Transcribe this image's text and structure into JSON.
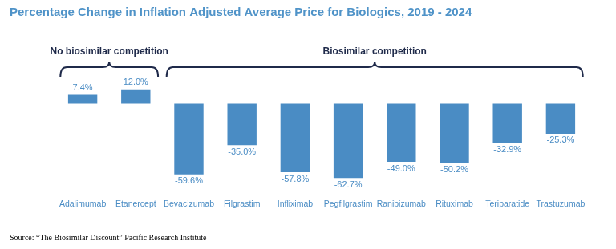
{
  "chart_data": {
    "type": "bar",
    "title": "Percentage Change in Inflation Adjusted Average Price for Biologics, 2019 - 2024",
    "categories": [
      "Adalimumab",
      "Etanercept",
      "Bevacizumab",
      "Filgrastim",
      "Infliximab",
      "Pegfilgrastim",
      "Ranibizumab",
      "Rituximab",
      "Teriparatide",
      "Trastuzumab"
    ],
    "values": [
      7.4,
      12.0,
      -59.6,
      -35.0,
      -57.8,
      -62.7,
      -49.0,
      -50.2,
      -32.9,
      -25.3
    ],
    "value_labels": [
      "7.4%",
      "12.0%",
      "-59.6%",
      "-35.0%",
      "-57.8%",
      "-62.7%",
      "-49.0%",
      "-50.2%",
      "-32.9%",
      "-25.3%"
    ],
    "color": "#4a8cc4",
    "ylim": [
      -75,
      20
    ],
    "yticks": [],
    "grid": false,
    "data_labels": true,
    "tick_labels": "x",
    "groups": [
      {
        "label": "No biosimilar competition",
        "categories": [
          "Adalimumab",
          "Etanercept"
        ]
      },
      {
        "label": "Biosimilar competition",
        "categories": [
          "Bevacizumab",
          "Filgrastim",
          "Infliximab",
          "Pegfilgrastim",
          "Ranibizumab",
          "Rituximab",
          "Teriparatide",
          "Trastuzumab"
        ]
      }
    ],
    "source": "Source: “The Biosimilar Discount” Pacific Research Institute"
  }
}
